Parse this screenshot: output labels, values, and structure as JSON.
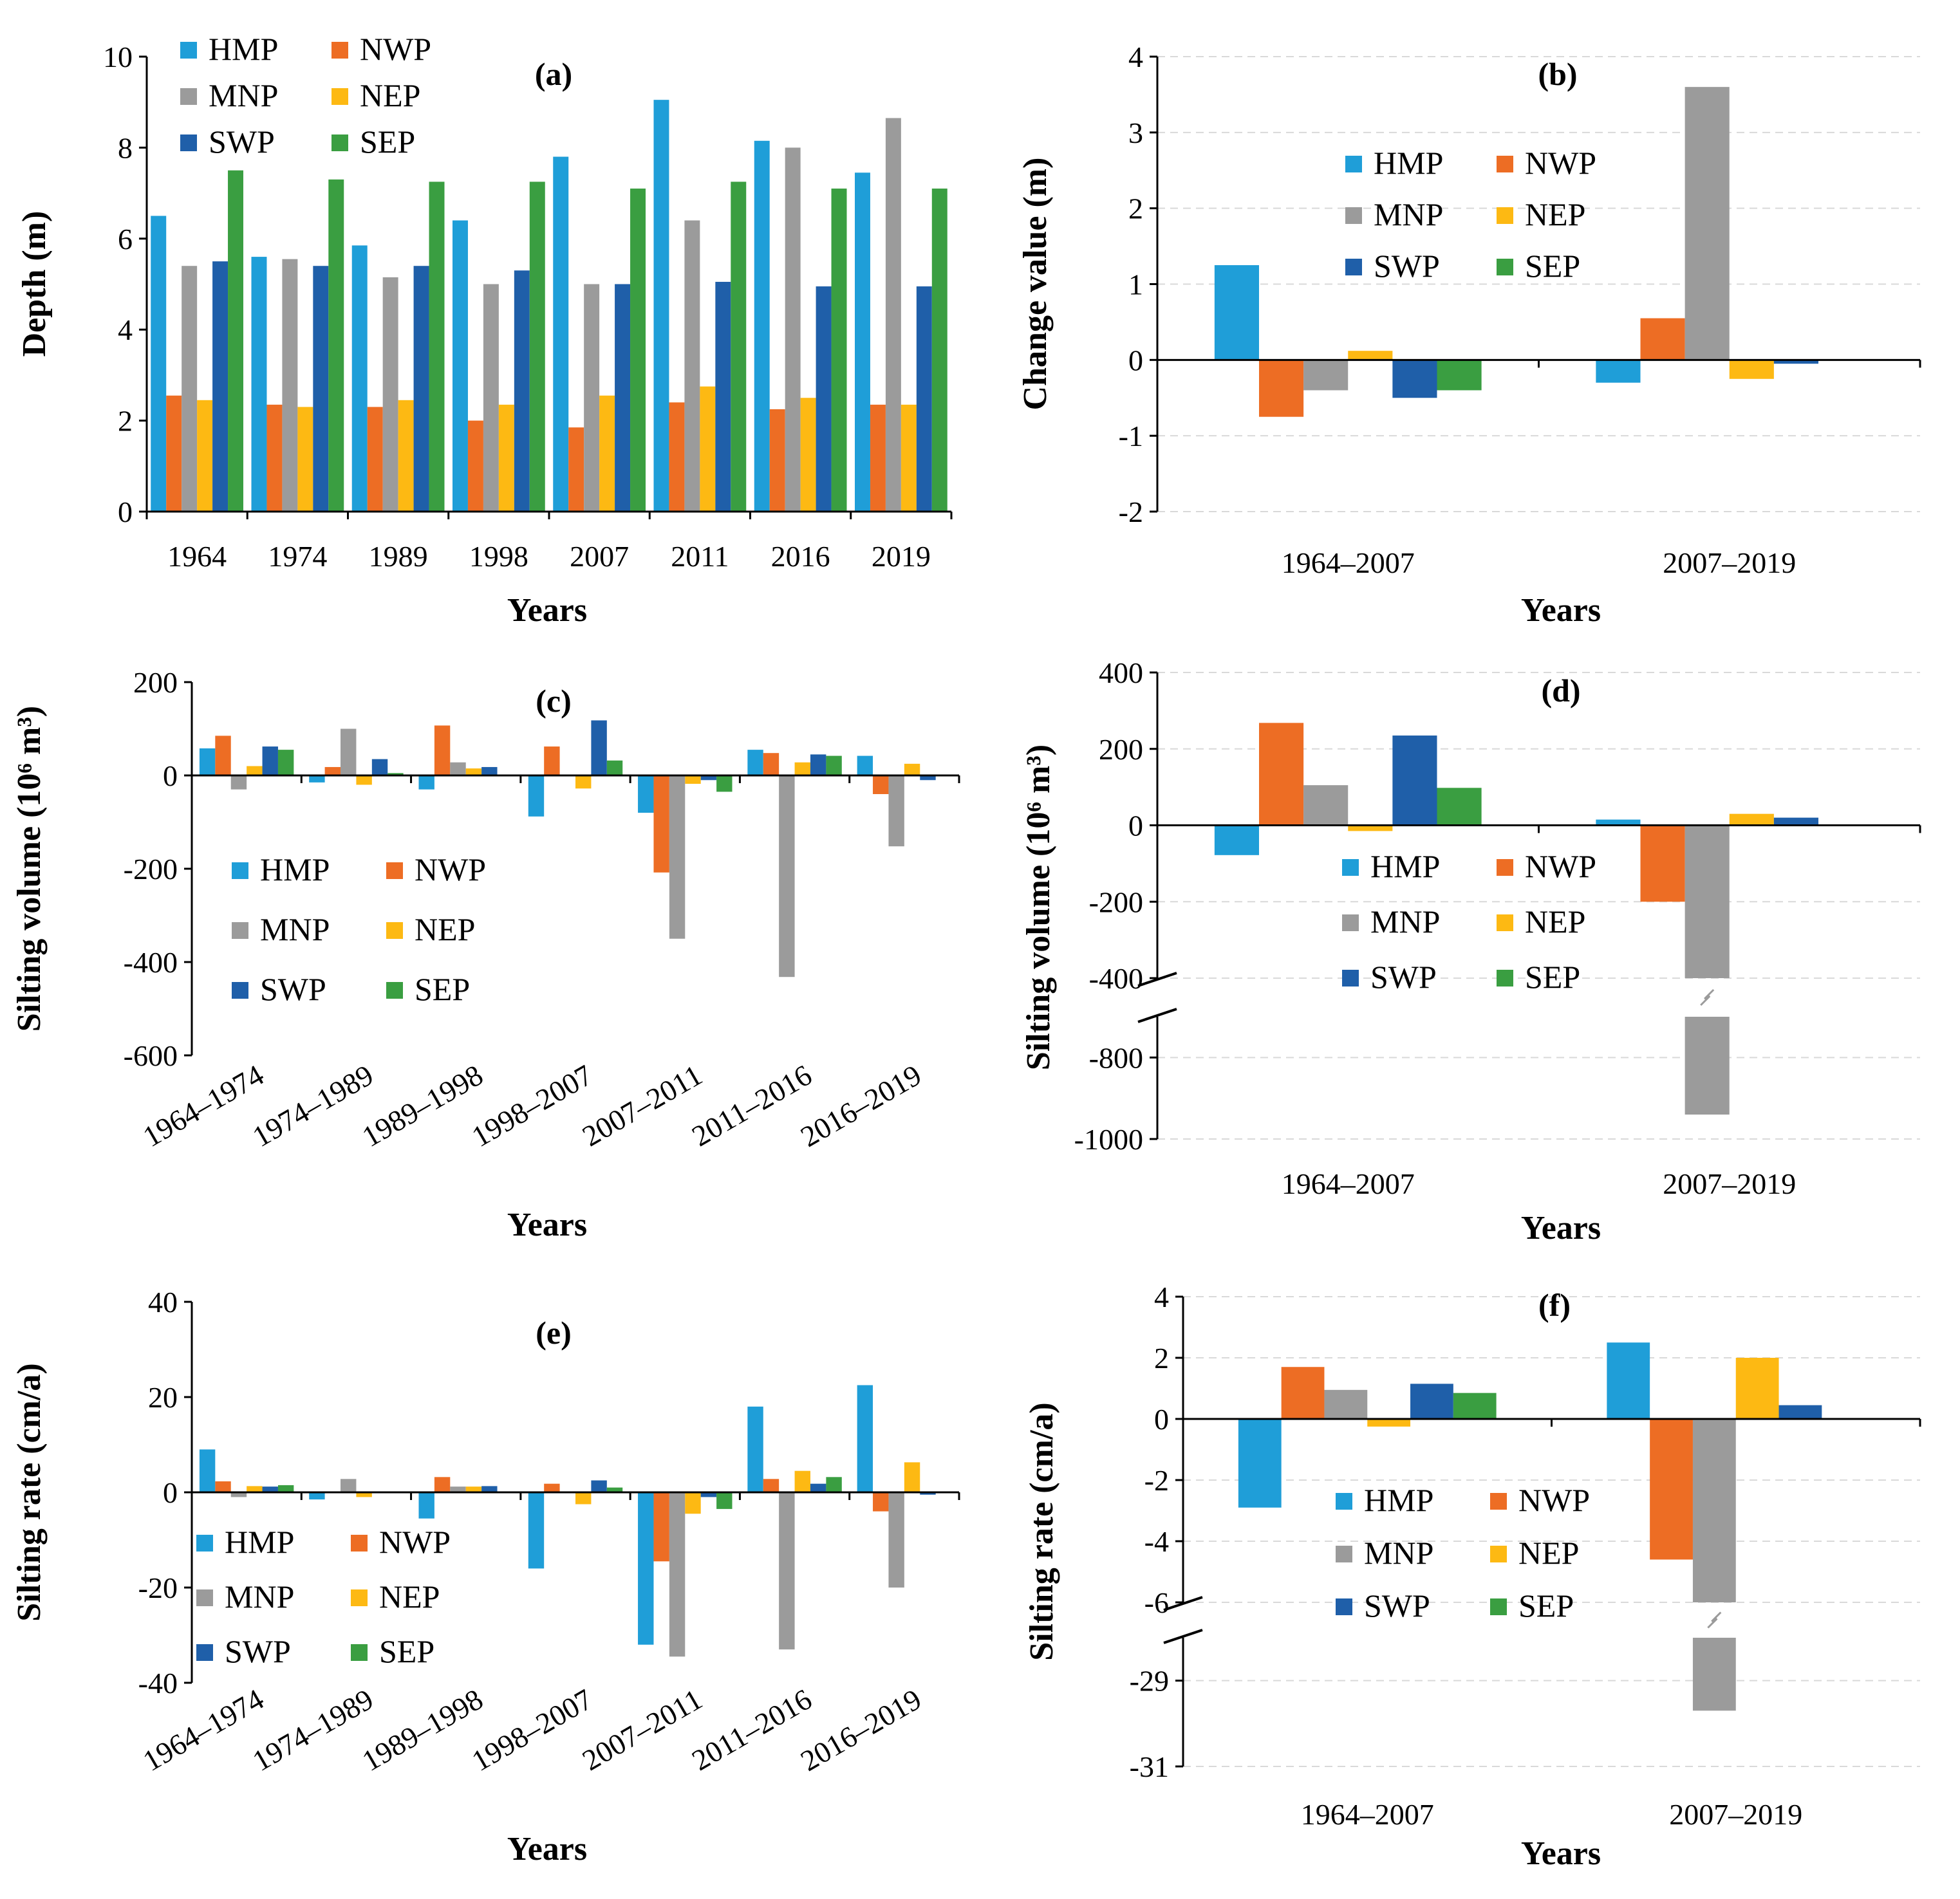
{
  "series_meta": [
    {
      "name": "HMP",
      "color": "#1f9ed8"
    },
    {
      "name": "NWP",
      "color": "#ed6d24"
    },
    {
      "name": "MNP",
      "color": "#9b9b9b"
    },
    {
      "name": "NEP",
      "color": "#fdb913"
    },
    {
      "name": "SWP",
      "color": "#1f5fa9"
    },
    {
      "name": "SEP",
      "color": "#3a9e41"
    }
  ],
  "chart_data": [
    {
      "id": "a",
      "type": "bar",
      "panel_label": "(a)",
      "xlabel": "Years",
      "ylabel": "Depth (m)",
      "ylim": [
        0,
        10
      ],
      "yticks": [
        0,
        2,
        4,
        6,
        8,
        10
      ],
      "ytick_labels": [
        "0",
        "2",
        "4",
        "6",
        "8",
        "10"
      ],
      "grid": false,
      "legend": "top-left",
      "categories": [
        "1964",
        "1974",
        "1989",
        "1998",
        "2007",
        "2011",
        "2016",
        "2019"
      ],
      "series": [
        {
          "name": "HMP",
          "values": [
            6.5,
            5.6,
            5.85,
            6.4,
            7.8,
            9.05,
            8.15,
            7.45
          ]
        },
        {
          "name": "NWP",
          "values": [
            2.55,
            2.35,
            2.3,
            2.0,
            1.85,
            2.4,
            2.25,
            2.35
          ]
        },
        {
          "name": "MNP",
          "values": [
            5.4,
            5.55,
            5.15,
            5.0,
            5.0,
            6.4,
            8.0,
            8.65
          ]
        },
        {
          "name": "NEP",
          "values": [
            2.45,
            2.3,
            2.45,
            2.35,
            2.55,
            2.75,
            2.5,
            2.35
          ]
        },
        {
          "name": "SWP",
          "values": [
            5.5,
            5.4,
            5.4,
            5.3,
            5.0,
            5.05,
            4.95,
            4.95
          ]
        },
        {
          "name": "SEP",
          "values": [
            7.5,
            7.3,
            7.25,
            7.25,
            7.1,
            7.25,
            7.1,
            7.1
          ]
        }
      ]
    },
    {
      "id": "b",
      "type": "bar",
      "panel_label": "(b)",
      "xlabel": "Years",
      "ylabel": "Change value (m)",
      "ylim": [
        -2,
        4
      ],
      "yticks": [
        -2,
        -1,
        0,
        1,
        2,
        3,
        4
      ],
      "ytick_labels": [
        "-2",
        "-1",
        "0",
        "1",
        "2",
        "3",
        "4"
      ],
      "grid": true,
      "legend": "top-center",
      "categories": [
        "1964–2007",
        "2007–2019"
      ],
      "series": [
        {
          "name": "HMP",
          "values": [
            1.25,
            -0.3
          ]
        },
        {
          "name": "NWP",
          "values": [
            -0.75,
            0.55
          ]
        },
        {
          "name": "MNP",
          "values": [
            -0.4,
            3.6
          ]
        },
        {
          "name": "NEP",
          "values": [
            0.12,
            -0.25
          ]
        },
        {
          "name": "SWP",
          "values": [
            -0.5,
            -0.05
          ]
        },
        {
          "name": "SEP",
          "values": [
            -0.4,
            0.0
          ]
        }
      ]
    },
    {
      "id": "c",
      "type": "bar",
      "panel_label": "(c)",
      "xlabel": "Years",
      "ylabel": "Silting volume (10⁶ m³)",
      "ylim": [
        -600,
        200
      ],
      "yticks": [
        -600,
        -400,
        -200,
        0,
        200
      ],
      "ytick_labels": [
        "-600",
        "-400",
        "-200",
        "0",
        "200"
      ],
      "grid": false,
      "legend": "bottom-left",
      "categories": [
        "1964–1974",
        "1974–1989",
        "1989–1998",
        "1998–2007",
        "2007–2011",
        "2011–2016",
        "2016–2019"
      ],
      "series": [
        {
          "name": "HMP",
          "values": [
            58,
            -15,
            -30,
            -88,
            -80,
            55,
            42
          ]
        },
        {
          "name": "NWP",
          "values": [
            85,
            18,
            107,
            62,
            -208,
            48,
            -40
          ]
        },
        {
          "name": "MNP",
          "values": [
            -30,
            100,
            28,
            0,
            -350,
            -432,
            -152
          ]
        },
        {
          "name": "NEP",
          "values": [
            20,
            -20,
            15,
            -28,
            -18,
            28,
            25
          ]
        },
        {
          "name": "SWP",
          "values": [
            62,
            35,
            18,
            118,
            -10,
            45,
            -10
          ]
        },
        {
          "name": "SEP",
          "values": [
            55,
            5,
            0,
            32,
            -35,
            42,
            0
          ]
        }
      ]
    },
    {
      "id": "d",
      "type": "bar",
      "panel_label": "(d)",
      "xlabel": "Years",
      "ylabel": "Silting volume (10⁶ m³)",
      "axis_break": {
        "upper_min": -400,
        "lower_max": -700
      },
      "ylim": [
        -1000,
        400
      ],
      "yticks": [
        -1000,
        -800,
        -400,
        -200,
        0,
        200,
        400
      ],
      "ytick_labels": [
        "-1000",
        "-800",
        "-400",
        "-200",
        "0",
        "200",
        "400"
      ],
      "grid": true,
      "legend": "bottom-center",
      "categories": [
        "1964–2007",
        "2007–2019"
      ],
      "series": [
        {
          "name": "HMP",
          "values": [
            -78,
            15
          ]
        },
        {
          "name": "NWP",
          "values": [
            268,
            -200
          ]
        },
        {
          "name": "MNP",
          "values": [
            105,
            -940
          ]
        },
        {
          "name": "NEP",
          "values": [
            -15,
            30
          ]
        },
        {
          "name": "SWP",
          "values": [
            235,
            20
          ]
        },
        {
          "name": "SEP",
          "values": [
            98,
            0
          ]
        }
      ]
    },
    {
      "id": "e",
      "type": "bar",
      "panel_label": "(e)",
      "xlabel": "Years",
      "ylabel": "Silting rate (cm/a)",
      "ylim": [
        -40,
        40
      ],
      "yticks": [
        -40,
        -20,
        0,
        20,
        40
      ],
      "ytick_labels": [
        "-40",
        "-20",
        "0",
        "20",
        "40"
      ],
      "grid": false,
      "legend": "bottom-left",
      "categories": [
        "1964–1974",
        "1974–1989",
        "1989–1998",
        "1998–2007",
        "2007–2011",
        "2011–2016",
        "2016–2019"
      ],
      "series": [
        {
          "name": "HMP",
          "values": [
            9,
            -1.5,
            -5.5,
            -16,
            -32,
            18,
            22.5
          ]
        },
        {
          "name": "NWP",
          "values": [
            2.3,
            0,
            3.2,
            1.8,
            -14.5,
            2.8,
            -4
          ]
        },
        {
          "name": "MNP",
          "values": [
            -1,
            2.8,
            1.2,
            0,
            -34.5,
            -33,
            -20
          ]
        },
        {
          "name": "NEP",
          "values": [
            1.3,
            -1,
            1.2,
            -2.5,
            -4.5,
            4.5,
            6.3
          ]
        },
        {
          "name": "SWP",
          "values": [
            1.2,
            0,
            1.3,
            2.5,
            -1,
            1.8,
            -0.5
          ]
        },
        {
          "name": "SEP",
          "values": [
            1.5,
            0,
            0,
            1,
            -3.5,
            3.2,
            0
          ]
        }
      ]
    },
    {
      "id": "f",
      "type": "bar",
      "panel_label": "(f)",
      "xlabel": "Years",
      "ylabel": "Silting rate (cm/a)",
      "axis_break": {
        "upper_min": -6,
        "lower_max": -28
      },
      "ylim": [
        -31,
        4
      ],
      "yticks": [
        -31,
        -29,
        -6,
        -4,
        -2,
        0,
        2,
        4
      ],
      "ytick_labels": [
        "-31",
        "-29",
        "-6",
        "-4",
        "-2",
        "0",
        "2",
        "4"
      ],
      "grid": true,
      "legend": "bottom-center",
      "categories": [
        "1964–2007",
        "2007–2019"
      ],
      "series": [
        {
          "name": "HMP",
          "values": [
            -2.9,
            2.5
          ]
        },
        {
          "name": "NWP",
          "values": [
            1.7,
            -4.6
          ]
        },
        {
          "name": "MNP",
          "values": [
            0.95,
            -29.7
          ]
        },
        {
          "name": "NEP",
          "values": [
            -0.25,
            2.0
          ]
        },
        {
          "name": "SWP",
          "values": [
            1.15,
            0.45
          ]
        },
        {
          "name": "SEP",
          "values": [
            0.85,
            0
          ]
        }
      ]
    }
  ]
}
